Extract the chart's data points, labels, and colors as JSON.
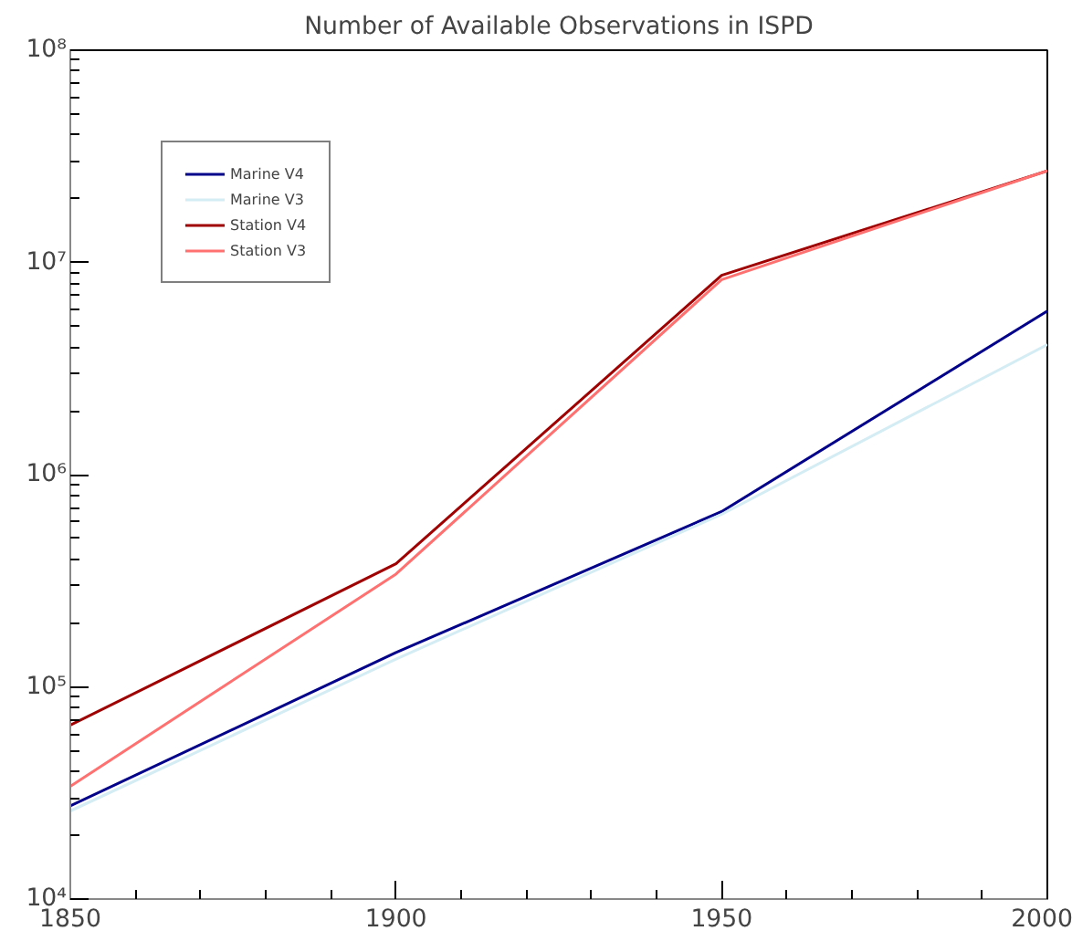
{
  "chart_data": {
    "type": "line",
    "title": "Number of Available Observations in ISPD",
    "x": [
      1850,
      1900,
      1950,
      2000
    ],
    "series": [
      {
        "name": "Marine V4",
        "color": "#00008b",
        "values": [
          27500,
          145000,
          670000,
          5900000
        ]
      },
      {
        "name": "Marine V3",
        "color": "#d4ecf4",
        "values": [
          26000,
          135000,
          650000,
          4100000
        ]
      },
      {
        "name": "Station V4",
        "color": "#a00000",
        "values": [
          66000,
          380000,
          8700000,
          27000000
        ]
      },
      {
        "name": "Station V3",
        "color": "#ff7070",
        "values": [
          34000,
          340000,
          8300000,
          27000000
        ]
      }
    ],
    "log": "y",
    "xlim": [
      1850,
      2000
    ],
    "xticks": [
      1850,
      1900,
      1950,
      2000
    ],
    "ylim": [
      10000,
      100000000
    ],
    "yticks": [
      {
        "value": 10000,
        "label": "10⁴"
      },
      {
        "value": 100000,
        "label": "10⁵"
      },
      {
        "value": 1000000,
        "label": "10⁶"
      },
      {
        "value": 10000000,
        "label": "10⁷"
      },
      {
        "value": 100000000,
        "label": "10⁸"
      }
    ],
    "legend": "top left",
    "grid": false,
    "marker": "none",
    "line_style": "solid"
  }
}
